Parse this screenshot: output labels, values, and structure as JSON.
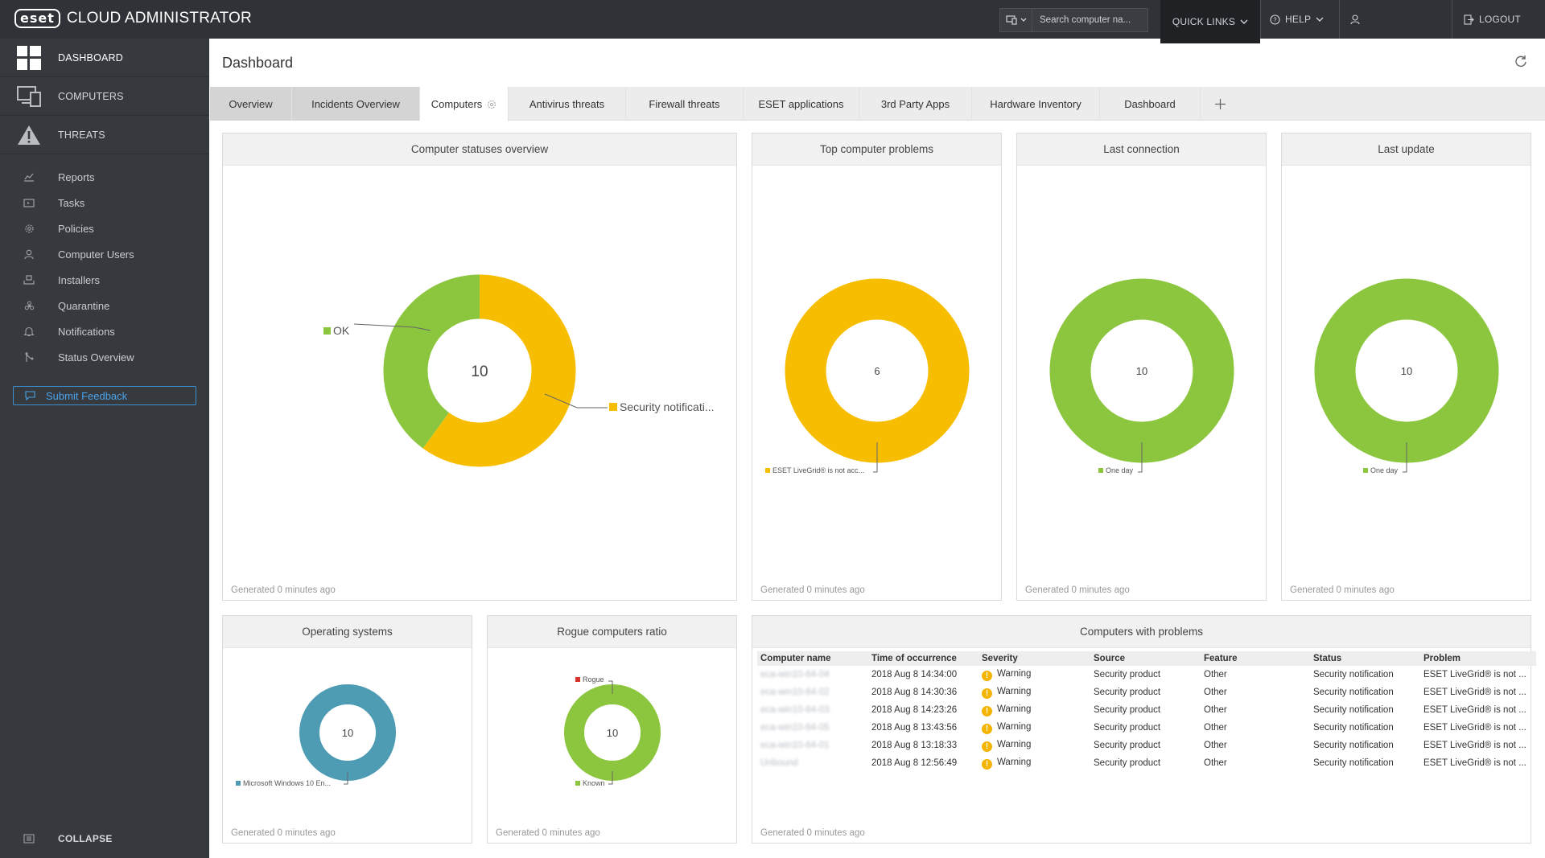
{
  "brand": {
    "logo": "eset",
    "title": "CLOUD ADMINISTRATOR"
  },
  "topbar": {
    "search_placeholder": "Search computer na...",
    "quick_links": "QUICK LINKS",
    "help": "HELP",
    "logout": "LOGOUT"
  },
  "sidebar": {
    "main": [
      {
        "label": "DASHBOARD",
        "icon": "dashboard-icon",
        "active": true
      },
      {
        "label": "COMPUTERS",
        "icon": "computers-icon"
      },
      {
        "label": "THREATS",
        "icon": "threats-icon"
      }
    ],
    "sub": [
      {
        "label": "Reports",
        "icon": "reports-icon"
      },
      {
        "label": "Tasks",
        "icon": "tasks-icon"
      },
      {
        "label": "Policies",
        "icon": "policies-icon"
      },
      {
        "label": "Computer Users",
        "icon": "computer-users-icon"
      },
      {
        "label": "Installers",
        "icon": "installers-icon"
      },
      {
        "label": "Quarantine",
        "icon": "quarantine-icon"
      },
      {
        "label": "Notifications",
        "icon": "notifications-icon"
      },
      {
        "label": "Status Overview",
        "icon": "status-overview-icon"
      }
    ],
    "feedback": "Submit Feedback",
    "collapse": "COLLAPSE"
  },
  "page": {
    "title": "Dashboard"
  },
  "tabs": [
    {
      "label": "Overview",
      "style": "gray"
    },
    {
      "label": "Incidents Overview",
      "style": "gray"
    },
    {
      "label": "Computers",
      "style": "active"
    },
    {
      "label": "Antivirus threats"
    },
    {
      "label": "Firewall threats"
    },
    {
      "label": "ESET applications"
    },
    {
      "label": "3rd Party Apps"
    },
    {
      "label": "Hardware Inventory"
    },
    {
      "label": "Dashboard"
    }
  ],
  "colors": {
    "ok_green": "#8cc63f",
    "warning_yellow": "#f7bd00",
    "os_blue": "#4e9cb4",
    "rogue_red": "#d9342b"
  },
  "widgets": {
    "generated": "Generated 0 minutes ago",
    "statuses": {
      "title": "Computer statuses overview",
      "total": "10",
      "legend_ok": "OK",
      "legend_security": "Security notificati..."
    },
    "problems": {
      "title": "Top computer problems",
      "total": "6",
      "legend": "ESET LiveGrid® is not acc..."
    },
    "last_connection": {
      "title": "Last connection",
      "total": "10",
      "legend": "One day"
    },
    "last_update": {
      "title": "Last update",
      "total": "10",
      "legend": "One day"
    },
    "os": {
      "title": "Operating systems",
      "total": "10",
      "legend": "Microsoft Windows 10 En..."
    },
    "rogue": {
      "title": "Rogue computers ratio",
      "total": "10",
      "legend_rogue": "Rogue",
      "legend_known": "Known"
    },
    "computers_problems": {
      "title": "Computers with problems",
      "columns": [
        "Computer name",
        "Time of occurrence",
        "Severity",
        "Source",
        "Feature",
        "Status",
        "Problem"
      ],
      "rows": [
        {
          "name": "eca-win10-64-04",
          "time": "2018 Aug 8 14:34:00",
          "severity": "Warning",
          "source": "Security product",
          "feature": "Other",
          "status": "Security notification",
          "problem": "ESET LiveGrid® is not ..."
        },
        {
          "name": "eca-win10-64-02",
          "time": "2018 Aug 8 14:30:36",
          "severity": "Warning",
          "source": "Security product",
          "feature": "Other",
          "status": "Security notification",
          "problem": "ESET LiveGrid® is not ..."
        },
        {
          "name": "eca-win10-64-03",
          "time": "2018 Aug 8 14:23:26",
          "severity": "Warning",
          "source": "Security product",
          "feature": "Other",
          "status": "Security notification",
          "problem": "ESET LiveGrid® is not ..."
        },
        {
          "name": "eca-win10-64-05",
          "time": "2018 Aug 8 13:43:56",
          "severity": "Warning",
          "source": "Security product",
          "feature": "Other",
          "status": "Security notification",
          "problem": "ESET LiveGrid® is not ..."
        },
        {
          "name": "eca-win10-64-01",
          "time": "2018 Aug 8 13:18:33",
          "severity": "Warning",
          "source": "Security product",
          "feature": "Other",
          "status": "Security notification",
          "problem": "ESET LiveGrid® is not ..."
        },
        {
          "name": "Unbound",
          "time": "2018 Aug 8 12:56:49",
          "severity": "Warning",
          "source": "Security product",
          "feature": "Other",
          "status": "Security notification",
          "problem": "ESET LiveGrid® is not ..."
        }
      ]
    }
  },
  "chart_data": [
    {
      "type": "pie",
      "title": "Computer statuses overview",
      "categories": [
        "OK",
        "Security notificati..."
      ],
      "values": [
        4,
        6
      ]
    },
    {
      "type": "pie",
      "title": "Top computer problems",
      "categories": [
        "ESET LiveGrid® is not acc..."
      ],
      "values": [
        6
      ]
    },
    {
      "type": "pie",
      "title": "Last connection",
      "categories": [
        "One day"
      ],
      "values": [
        10
      ]
    },
    {
      "type": "pie",
      "title": "Last update",
      "categories": [
        "One day"
      ],
      "values": [
        10
      ]
    },
    {
      "type": "pie",
      "title": "Operating systems",
      "categories": [
        "Microsoft Windows 10 En..."
      ],
      "values": [
        10
      ]
    },
    {
      "type": "pie",
      "title": "Rogue computers ratio",
      "categories": [
        "Rogue",
        "Known"
      ],
      "values": [
        0,
        10
      ]
    }
  ]
}
